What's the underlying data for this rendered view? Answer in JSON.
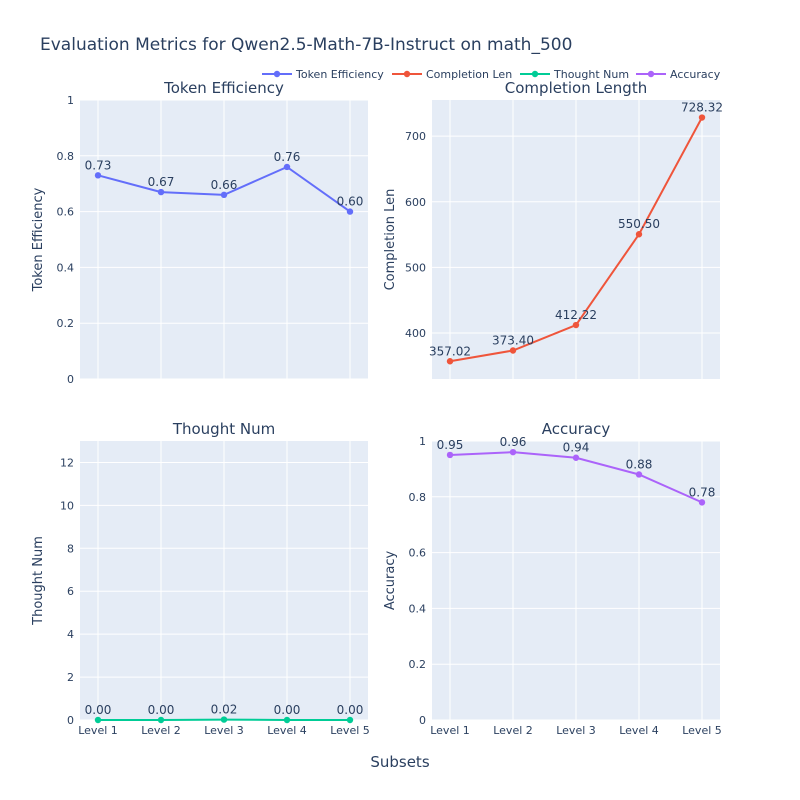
{
  "title": "Evaluation Metrics for Qwen2.5-Math-7B-Instruct on math_500",
  "x_axis_title": "Subsets",
  "legend": [
    {
      "name": "Token Efficiency",
      "color": "#636efa"
    },
    {
      "name": "Completion Len",
      "color": "#ef553b"
    },
    {
      "name": "Thought Num",
      "color": "#00cc96"
    },
    {
      "name": "Accuracy",
      "color": "#ab63fa"
    }
  ],
  "chart_data": [
    {
      "type": "line",
      "title": "Token Efficiency",
      "ylabel": "Token Efficiency",
      "categories": [
        "Level 1",
        "Level 2",
        "Level 3",
        "Level 4",
        "Level 5"
      ],
      "series": [
        {
          "name": "Token Efficiency",
          "values": [
            0.73,
            0.67,
            0.66,
            0.76,
            0.6
          ],
          "color": "#636efa"
        }
      ],
      "labels": [
        "0.73",
        "0.67",
        "0.66",
        "0.76",
        "0.60"
      ],
      "ylim": [
        0,
        1
      ],
      "yticks": [
        0,
        0.2,
        0.4,
        0.6,
        0.8,
        1
      ],
      "ytick_labels": [
        "0",
        "0.2",
        "0.4",
        "0.6",
        "0.8",
        "1"
      ],
      "show_xticks": false,
      "grid": true
    },
    {
      "type": "line",
      "title": "Completion Length",
      "ylabel": "Completion Len",
      "categories": [
        "Level 1",
        "Level 2",
        "Level 3",
        "Level 4",
        "Level 5"
      ],
      "series": [
        {
          "name": "Completion Len",
          "values": [
            357.02,
            373.4,
            412.22,
            550.5,
            728.32
          ],
          "color": "#ef553b"
        }
      ],
      "labels": [
        "357.02",
        "373.40",
        "412.22",
        "550.50",
        "728.32"
      ],
      "ylim": [
        330,
        755
      ],
      "yticks": [
        400,
        500,
        600,
        700
      ],
      "ytick_labels": [
        "400",
        "500",
        "600",
        "700"
      ],
      "show_xticks": false,
      "grid": true
    },
    {
      "type": "line",
      "title": "Thought Num",
      "ylabel": "Thought Num",
      "categories": [
        "Level 1",
        "Level 2",
        "Level 3",
        "Level 4",
        "Level 5"
      ],
      "series": [
        {
          "name": "Thought Num",
          "values": [
            0.0,
            0.0,
            0.02,
            0.0,
            0.0
          ],
          "color": "#00cc96"
        }
      ],
      "labels": [
        "0.00",
        "0.00",
        "0.02",
        "0.00",
        "0.00"
      ],
      "ylim": [
        0,
        13
      ],
      "yticks": [
        0,
        2,
        4,
        6,
        8,
        10,
        12
      ],
      "ytick_labels": [
        "0",
        "2",
        "4",
        "6",
        "8",
        "10",
        "12"
      ],
      "show_xticks": true,
      "grid": true
    },
    {
      "type": "line",
      "title": "Accuracy",
      "ylabel": "Accuracy",
      "categories": [
        "Level 1",
        "Level 2",
        "Level 3",
        "Level 4",
        "Level 5"
      ],
      "series": [
        {
          "name": "Accuracy",
          "values": [
            0.95,
            0.96,
            0.94,
            0.88,
            0.78
          ],
          "color": "#ab63fa"
        }
      ],
      "labels": [
        "0.95",
        "0.96",
        "0.94",
        "0.88",
        "0.78"
      ],
      "ylim": [
        0,
        1
      ],
      "yticks": [
        0,
        0.2,
        0.4,
        0.6,
        0.8,
        1
      ],
      "ytick_labels": [
        "0",
        "0.2",
        "0.4",
        "0.6",
        "0.8",
        "1"
      ],
      "show_xticks": true,
      "grid": true
    }
  ]
}
